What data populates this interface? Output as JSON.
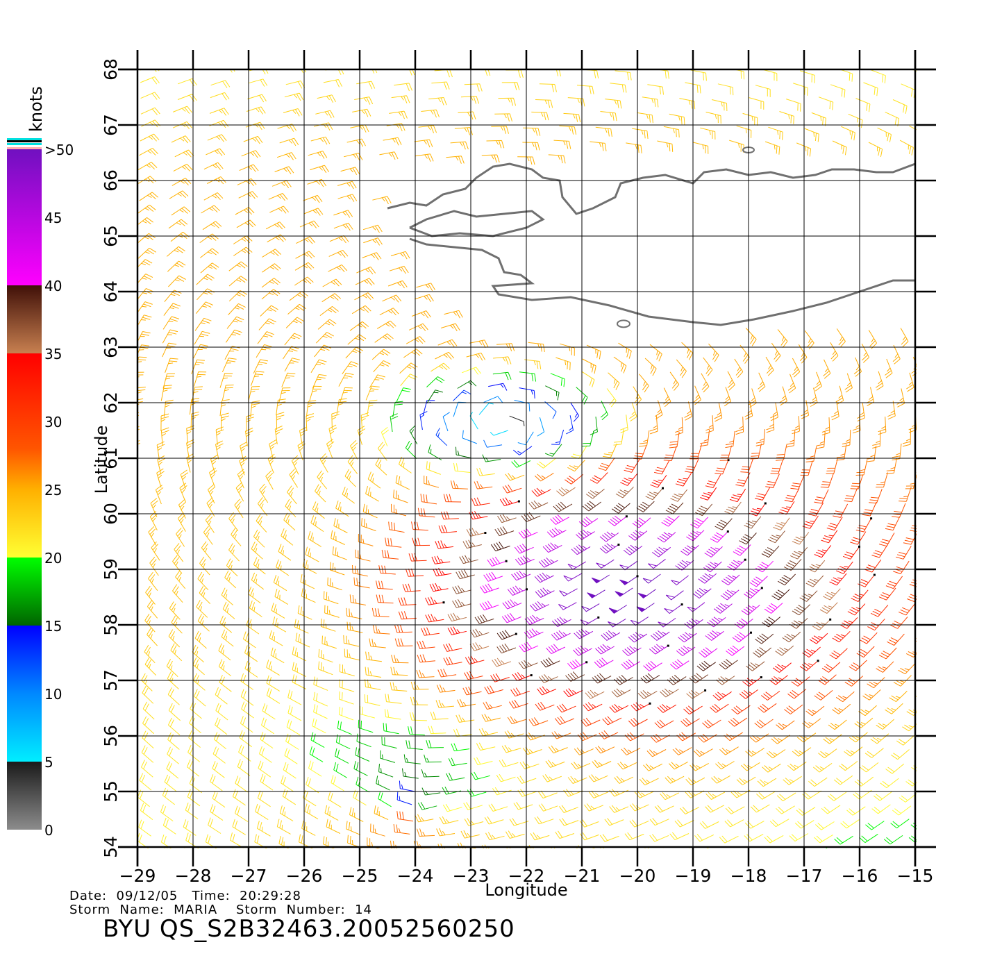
{
  "chart_data": {
    "type": "wind-barb-map",
    "xlabel": "Longitude",
    "ylabel": "Latitude",
    "xlim": [
      -29,
      -15
    ],
    "ylim": [
      54,
      68
    ],
    "x_ticks": [
      "-29",
      "-28",
      "-27",
      "-26",
      "-25",
      "-24",
      "-23",
      "-22",
      "-21",
      "-20",
      "-19",
      "-18",
      "-17",
      "-16",
      "-15"
    ],
    "y_ticks": [
      "54",
      "55",
      "56",
      "57",
      "58",
      "59",
      "60",
      "61",
      "62",
      "63",
      "64",
      "65",
      "66",
      "67",
      "68"
    ],
    "grid": true,
    "colorbar": {
      "title": "knots",
      "labels": [
        "0",
        "5",
        "10",
        "15",
        "20",
        "25",
        "30",
        "35",
        "40",
        "45",
        ">50"
      ],
      "stops": [
        {
          "knots": 0,
          "color": "#8c8c8c"
        },
        {
          "knots": 5,
          "color": "#1a1a1a"
        },
        {
          "knots": 5,
          "color": "#00eeff"
        },
        {
          "knots": 10,
          "color": "#0088ff"
        },
        {
          "knots": 15,
          "color": "#0000ff"
        },
        {
          "knots": 15,
          "color": "#006400"
        },
        {
          "knots": 20,
          "color": "#00ff00"
        },
        {
          "knots": 20,
          "color": "#ffff33"
        },
        {
          "knots": 25,
          "color": "#ffb000"
        },
        {
          "knots": 28,
          "color": "#ff5500"
        },
        {
          "knots": 35,
          "color": "#ff0000"
        },
        {
          "knots": 35,
          "color": "#c88050"
        },
        {
          "knots": 40,
          "color": "#401008"
        },
        {
          "knots": 40,
          "color": "#ff00ff"
        },
        {
          "knots": 50,
          "color": "#7010c0"
        }
      ]
    },
    "storm": {
      "low_center": {
        "lon": -22.3,
        "lat": 61.6
      },
      "jet_center": {
        "lon": -20.4,
        "lat": 58.6
      },
      "southern_low": {
        "lon": -24.0,
        "lat": 54.6
      }
    },
    "coastline_color": "#707070"
  },
  "meta": {
    "date_line": "Date:  09/12/05   Time:  20:29:28",
    "storm_line": "Storm  Name:  MARIA    Storm  Number:  14",
    "identifier": "BYU  QS_S2B32463.20052560250"
  }
}
